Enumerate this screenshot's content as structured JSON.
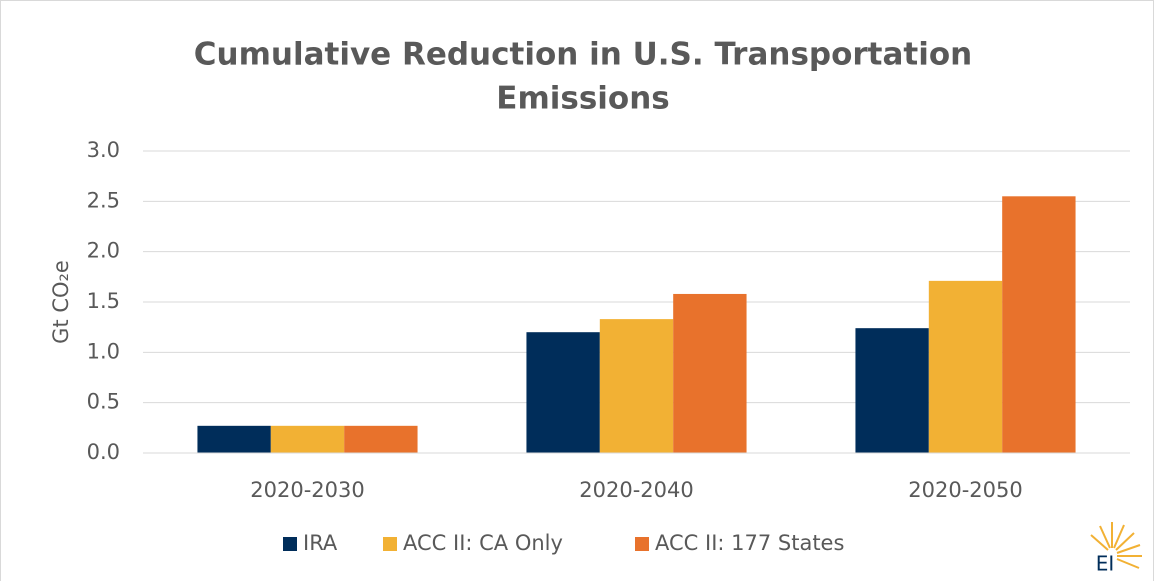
{
  "chart_data": {
    "type": "bar",
    "title": [
      "Cumulative Reduction in U.S. Transportation",
      "Emissions"
    ],
    "y_label": "Gt CO₂e",
    "categories": [
      "2020-2030",
      "2020-2040",
      "2020-2050"
    ],
    "series": [
      {
        "name": "IRA",
        "color": "#002d5a",
        "values": [
          0.27,
          1.2,
          1.24
        ]
      },
      {
        "name": "ACC II: CA Only",
        "color": "#f2b134",
        "values": [
          0.27,
          1.33,
          1.71
        ]
      },
      {
        "name": "ACC II: 177 States",
        "color": "#e8722c",
        "values": [
          0.27,
          1.58,
          2.55
        ]
      }
    ],
    "ylim": [
      0,
      3
    ],
    "yticks": [
      {
        "value": 0,
        "label": "0.0"
      },
      {
        "value": 0.5,
        "label": "0.5"
      },
      {
        "value": 1,
        "label": "1.0"
      },
      {
        "value": 1.5,
        "label": "1.5"
      },
      {
        "value": 2,
        "label": "2.0"
      },
      {
        "value": 2.5,
        "label": "2.5"
      },
      {
        "value": 3,
        "label": "3.0"
      }
    ],
    "grid": true,
    "legend": "bottom",
    "logo": "EI"
  }
}
